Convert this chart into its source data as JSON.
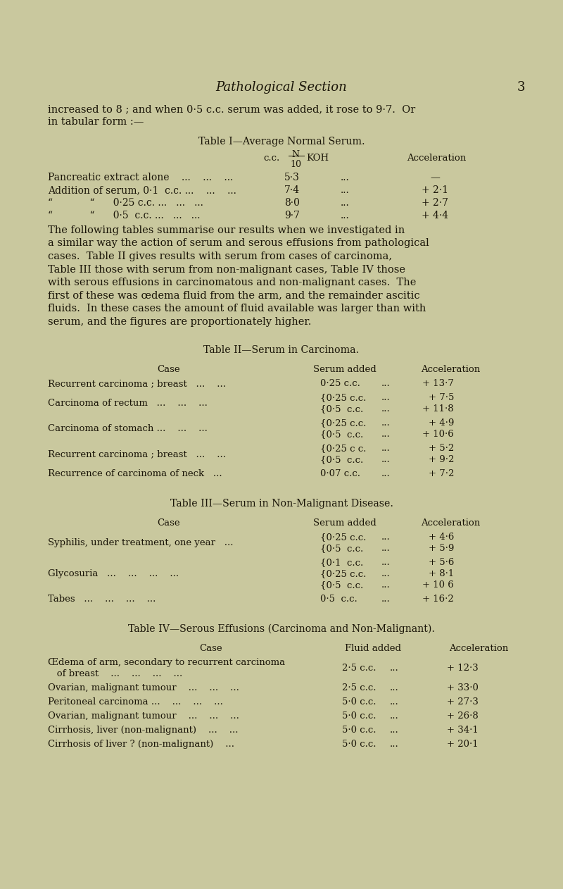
{
  "bg_color": "#c9c89e",
  "text_color": "#1a1508",
  "page_title": "Pathological Section",
  "page_number": "3",
  "intro_line1": "increased to 8 ; and when 0·5 c.c. serum was added, it rose to 9·7.  Or",
  "intro_line2": "in tabular form :—",
  "table1_title": "Table I—Average Normal Serum.",
  "para1_lines": [
    "The following tables summarise our results when we investigated in",
    "a similar way the action of serum and serous effusions from pathological",
    "cases.  Table II gives results with serum from cases of carcinoma,",
    "Table III those with serum from non-malignant cases, Table IV those",
    "with serous effusions in carcinomatous and non-malignant cases.  The",
    "first of these was œdema fluid from the arm, and the remainder ascitic",
    "fluids.  In these cases the amount of fluid available was larger than with",
    "serum, and the figures are proportionately higher."
  ],
  "table2_title": "Table II—Serum in Carcinoma.",
  "table3_title": "Table III—Serum in Non-Malignant Disease.",
  "table4_title": "Table IV—Serous Effusions (Carcinoma and Non-Malignant)."
}
